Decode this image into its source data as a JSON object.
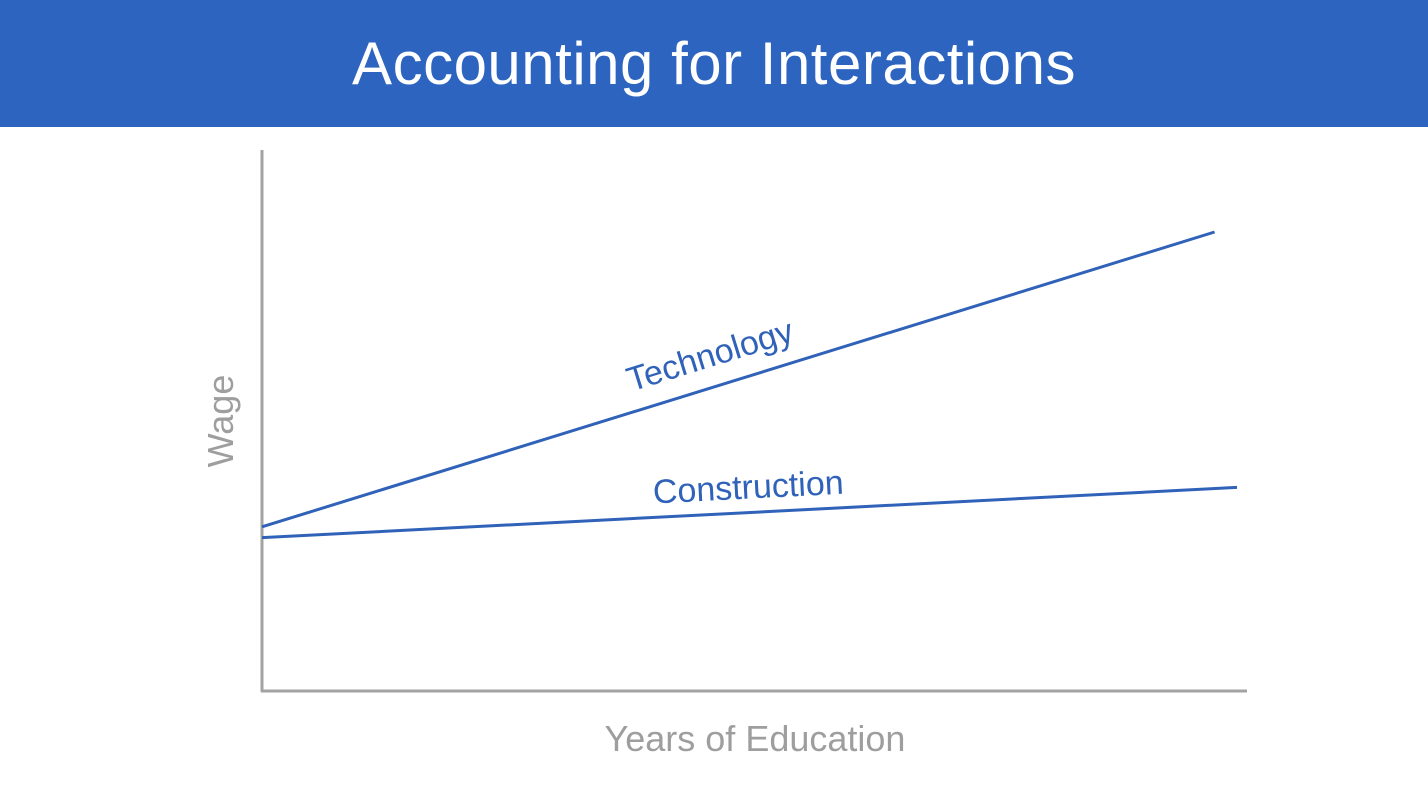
{
  "slide": {
    "title": "Accounting for Interactions",
    "colors": {
      "header_bg": "#2c64c0",
      "line": "#2f62b8",
      "axis": "#a3a3a3",
      "axis_label": "#9e9e9e"
    }
  },
  "chart_data": {
    "type": "line",
    "xlabel": "Years of Education",
    "ylabel": "Wage",
    "xlim": [
      0,
      10
    ],
    "ylim": [
      0,
      10
    ],
    "grid": false,
    "legend": "none",
    "tick_labels": false,
    "series": [
      {
        "name": "Technology",
        "x": [
          0,
          9.77
        ],
        "y": [
          3.04,
          8.5
        ]
      },
      {
        "name": "Construction",
        "x": [
          0,
          10
        ],
        "y": [
          2.84,
          3.77
        ]
      }
    ]
  }
}
